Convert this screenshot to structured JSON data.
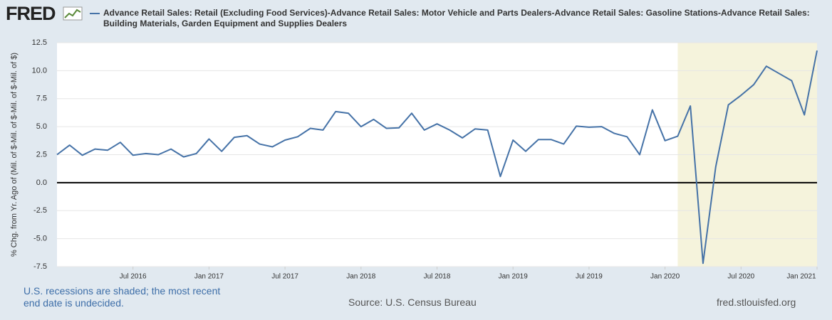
{
  "logo": "FRED",
  "chart_data": {
    "type": "line",
    "x": [
      "2016-01",
      "2016-02",
      "2016-03",
      "2016-04",
      "2016-05",
      "2016-06",
      "2016-07",
      "2016-08",
      "2016-09",
      "2016-10",
      "2016-11",
      "2016-12",
      "2017-01",
      "2017-02",
      "2017-03",
      "2017-04",
      "2017-05",
      "2017-06",
      "2017-07",
      "2017-08",
      "2017-09",
      "2017-10",
      "2017-11",
      "2017-12",
      "2018-01",
      "2018-02",
      "2018-03",
      "2018-04",
      "2018-05",
      "2018-06",
      "2018-07",
      "2018-08",
      "2018-09",
      "2018-10",
      "2018-11",
      "2018-12",
      "2019-01",
      "2019-02",
      "2019-03",
      "2019-04",
      "2019-05",
      "2019-06",
      "2019-07",
      "2019-08",
      "2019-09",
      "2019-10",
      "2019-11",
      "2019-12",
      "2020-01",
      "2020-02",
      "2020-03",
      "2020-04",
      "2020-05",
      "2020-06",
      "2020-07",
      "2020-08",
      "2020-09",
      "2020-10",
      "2020-11",
      "2020-12",
      "2021-01"
    ],
    "series": [
      {
        "name": "Advance Retail Sales: Retail (Excluding Food Services)-Advance Retail Sales: Motor Vehicle and Parts Dealers-Advance Retail Sales: Gasoline Stations-Advance Retail Sales: Building Materials, Garden Equipment and Supplies Dealers",
        "color": "#4572a7",
        "values": [
          2.5,
          3.35,
          2.45,
          3.0,
          2.9,
          3.6,
          2.45,
          2.6,
          2.5,
          3.0,
          2.3,
          2.6,
          3.9,
          2.8,
          4.05,
          4.2,
          3.45,
          3.2,
          3.8,
          4.1,
          4.85,
          4.7,
          6.35,
          6.2,
          5.0,
          5.65,
          4.85,
          4.9,
          6.2,
          4.7,
          5.25,
          4.7,
          4.0,
          4.8,
          4.7,
          0.55,
          3.8,
          2.8,
          3.85,
          3.85,
          3.45,
          5.05,
          4.95,
          5.0,
          4.4,
          4.1,
          2.5,
          6.5,
          3.75,
          4.15,
          6.85,
          -7.2,
          1.4,
          6.95,
          7.8,
          8.75,
          10.4,
          9.75,
          9.1,
          6.05,
          11.8
        ]
      }
    ],
    "xlim": [
      "2016-01",
      "2021-01"
    ],
    "xticks": [
      {
        "value": "2016-07",
        "label": "Jul 2016"
      },
      {
        "value": "2017-01",
        "label": "Jan 2017"
      },
      {
        "value": "2017-07",
        "label": "Jul 2017"
      },
      {
        "value": "2018-01",
        "label": "Jan 2018"
      },
      {
        "value": "2018-07",
        "label": "Jul 2018"
      },
      {
        "value": "2019-01",
        "label": "Jan 2019"
      },
      {
        "value": "2019-07",
        "label": "Jul 2019"
      },
      {
        "value": "2020-01",
        "label": "Jan 2020"
      },
      {
        "value": "2020-07",
        "label": "Jul 2020"
      },
      {
        "value": "2021-01",
        "label": "Jan 2021"
      }
    ],
    "ylim": [
      -7.5,
      12.5
    ],
    "yticks": [
      -7.5,
      {
        "value": -5,
        "label": "-5.0"
      },
      -2.5,
      {
        "value": 0,
        "label": "0.0"
      },
      2.5,
      {
        "value": 5,
        "label": "5.0"
      },
      7.5,
      {
        "value": 10,
        "label": "10.0"
      },
      12.5
    ],
    "ylabel": "% Chg. from Yr. Ago of (Mil. of $-Mil. of $-Mil. of $-Mil. of $)",
    "grid": true,
    "recessions": [
      {
        "start": "2020-02",
        "end": "2021-01"
      }
    ],
    "note": "U.S. recessions are shaded; the most recent end date is undecided.",
    "source": "Source: U.S. Census Bureau",
    "url": "fred.stlouisfed.org"
  }
}
